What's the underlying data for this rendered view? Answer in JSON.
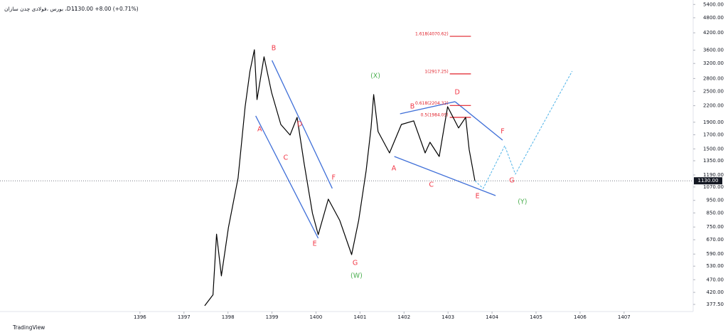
{
  "chart_data": {
    "type": "line",
    "title": "بورس ،فولادی چدن سازان ،D ،1",
    "subtitle": "1130.00  +8.00 (+0.71%)",
    "brand": "TradingView",
    "log_scale": true,
    "xlim": [
      1392.82,
      1408.57
    ],
    "xticks": [
      1396,
      1397,
      1398,
      1399,
      1400,
      1401,
      1402,
      1403,
      1404,
      1405,
      1406,
      1407
    ],
    "ylim": [
      354.4,
      5618
    ],
    "yticks": [
      {
        "value": 377.5,
        "label": "377.50"
      },
      {
        "value": 420,
        "label": "420.00"
      },
      {
        "value": 470,
        "label": "470.00"
      },
      {
        "value": 530,
        "label": "530.00"
      },
      {
        "value": 590,
        "label": "590.00"
      },
      {
        "value": 670,
        "label": "670.00"
      },
      {
        "value": 750,
        "label": "750.00"
      },
      {
        "value": 850,
        "label": "850.00"
      },
      {
        "value": 950,
        "label": "950.00"
      },
      {
        "value": 1070,
        "label": "1070.00"
      },
      {
        "value": 1190,
        "label": "1190.00"
      },
      {
        "value": 1350,
        "label": "1350.00"
      },
      {
        "value": 1500,
        "label": "1500.00"
      },
      {
        "value": 1700,
        "label": "1700.00"
      },
      {
        "value": 1900,
        "label": "1900.00"
      },
      {
        "value": 2200,
        "label": "2200.00"
      },
      {
        "value": 2500,
        "label": "2500.00"
      },
      {
        "value": 2800,
        "label": "2800.00"
      },
      {
        "value": 3200,
        "label": "3200.00"
      },
      {
        "value": 3600,
        "label": "3600.00"
      },
      {
        "value": 4200,
        "label": "4200.00"
      },
      {
        "value": 4800,
        "label": "4800.00"
      },
      {
        "value": 5400,
        "label": "5400.00"
      }
    ],
    "last_price": {
      "value": 1130,
      "label": "1130.00",
      "color": "#131722"
    },
    "series": [
      {
        "color": "#000000",
        "dash": false,
        "x": [
          1397.47,
          1397.66,
          1397.74,
          1397.85,
          1398.01,
          1398.23,
          1398.39,
          1398.5,
          1398.6,
          1398.66,
          1398.82,
          1398.99,
          1399.2,
          1399.41,
          1399.57,
          1399.73,
          1399.92,
          1400.05,
          1400.28,
          1400.54,
          1400.81,
          1400.97,
          1401.14,
          1401.25,
          1401.31,
          1401.41,
          1401.67,
          1401.94,
          1402.22,
          1402.48,
          1402.59,
          1402.8,
          1402.99,
          1403.24,
          1403.4,
          1403.48,
          1403.61
        ],
        "values": [
          373,
          411,
          704,
          486,
          746,
          1160,
          2181,
          2990,
          3613,
          2323,
          3393,
          2474,
          1862,
          1695,
          1984,
          1317,
          847,
          701,
          960,
          795,
          587,
          795,
          1236,
          1806,
          2427,
          1749,
          1447,
          1862,
          1923,
          1447,
          1591,
          1402,
          2181,
          1806,
          1984,
          1493,
          1130
        ]
      },
      {
        "color": "#4fb3e8",
        "dash": true,
        "x": [
          1403.61,
          1403.8,
          1404.29,
          1404.53,
          1405.82
        ],
        "values": [
          1130,
          1056,
          1542,
          1198,
          2990
        ]
      }
    ],
    "trendlines": {
      "color": "#3f6fd8",
      "lines": [
        [
          1399.0,
          3287,
          1400.37,
          1056
        ],
        [
          1398.63,
          2010,
          1400.05,
          679
        ],
        [
          1401.91,
          2048,
          1403.16,
          2280
        ],
        [
          1403.16,
          2280,
          1404.24,
          1621
        ],
        [
          1401.78,
          1402,
          1404.08,
          991
        ]
      ]
    },
    "fib_levels": {
      "color": "#e0202a",
      "x": [
        1403.04,
        1403.52
      ],
      "levels": [
        {
          "value": 4070.62,
          "label": "1.618(4070.62)"
        },
        {
          "value": 2917.25,
          "label": "1(2917.25)"
        },
        {
          "value": 2204.32,
          "label": "0.618(2204.32)"
        },
        {
          "value": 1984.09,
          "label": "0.5(1984.09)"
        }
      ]
    },
    "annotations": [
      {
        "text": "B",
        "x": 1399.04,
        "y": 3659,
        "color": "#f23645"
      },
      {
        "text": "A",
        "x": 1398.72,
        "y": 1782,
        "color": "#f23645"
      },
      {
        "text": "D",
        "x": 1399.63,
        "y": 1862,
        "color": "#f23645"
      },
      {
        "text": "C",
        "x": 1399.31,
        "y": 1385,
        "color": "#f23645"
      },
      {
        "text": "F",
        "x": 1400.4,
        "y": 1160,
        "color": "#f23645"
      },
      {
        "text": "E",
        "x": 1399.97,
        "y": 645,
        "color": "#f23645"
      },
      {
        "text": "G",
        "x": 1400.89,
        "y": 544,
        "color": "#f23645"
      },
      {
        "text": "(W)",
        "x": 1400.92,
        "y": 486,
        "color": "#4caf50"
      },
      {
        "text": "(X)",
        "x": 1401.35,
        "y": 2860,
        "color": "#4caf50"
      },
      {
        "text": "A",
        "x": 1401.77,
        "y": 1260,
        "color": "#f23645"
      },
      {
        "text": "B",
        "x": 1402.19,
        "y": 2181,
        "color": "#f23645"
      },
      {
        "text": "C",
        "x": 1402.62,
        "y": 1089,
        "color": "#f23645"
      },
      {
        "text": "D",
        "x": 1403.21,
        "y": 2474,
        "color": "#f23645"
      },
      {
        "text": "E",
        "x": 1403.67,
        "y": 985,
        "color": "#f23645"
      },
      {
        "text": "F",
        "x": 1404.24,
        "y": 1749,
        "color": "#f23645"
      },
      {
        "text": "G",
        "x": 1404.45,
        "y": 1130,
        "color": "#f23645"
      },
      {
        "text": "(Y)",
        "x": 1404.69,
        "y": 937,
        "color": "#4caf50"
      }
    ]
  }
}
